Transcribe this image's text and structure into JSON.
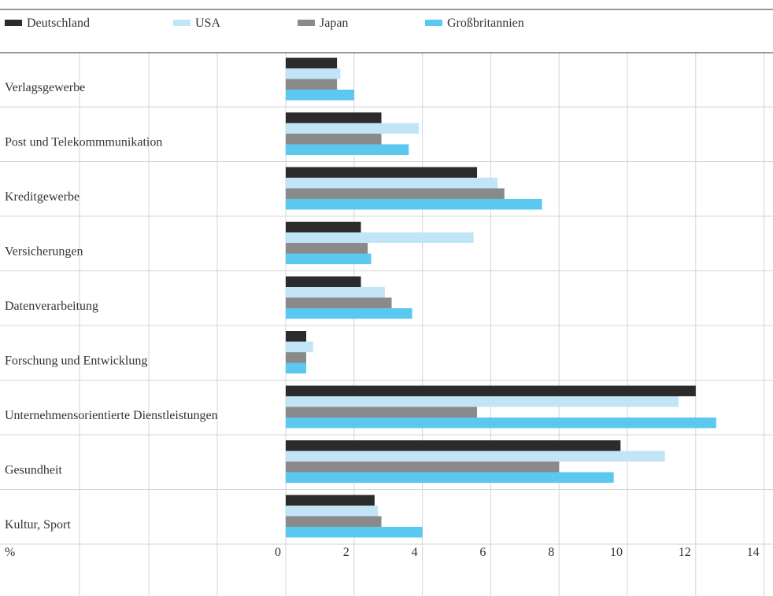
{
  "chart_data": {
    "type": "bar",
    "orientation": "horizontal",
    "categories": [
      "Verlagsgewerbe",
      "Post und Telekommmunikation",
      "Kreditgewerbe",
      "Versicherungen",
      "Datenverarbeitung",
      "Forschung und Entwicklung",
      "Unternehmensorientierte Dienstleistungen",
      "Gesundheit",
      "Kultur, Sport"
    ],
    "series": [
      {
        "name": "Deutschland",
        "color": "#2b2b2b",
        "values": [
          1.5,
          2.8,
          5.6,
          2.2,
          2.2,
          0.6,
          12.0,
          9.8,
          2.6
        ]
      },
      {
        "name": "USA",
        "color": "#c2e4f7",
        "values": [
          1.6,
          3.9,
          6.2,
          5.5,
          2.9,
          0.8,
          11.5,
          11.1,
          2.7
        ]
      },
      {
        "name": "Japan",
        "color": "#8a8a8a",
        "values": [
          1.5,
          2.8,
          6.4,
          2.4,
          3.1,
          0.6,
          5.6,
          8.0,
          2.8
        ]
      },
      {
        "name": "Großbritannien",
        "color": "#5bc8f0",
        "values": [
          2.0,
          3.6,
          7.5,
          2.5,
          3.7,
          0.6,
          12.6,
          9.6,
          4.0
        ]
      }
    ],
    "x_ticks": [
      "0",
      "2",
      "4",
      "6",
      "8",
      "10",
      "12",
      "14"
    ],
    "xlim": [
      0,
      14
    ],
    "axis_unit_label": "%",
    "grid": true,
    "legend_position": "top"
  }
}
